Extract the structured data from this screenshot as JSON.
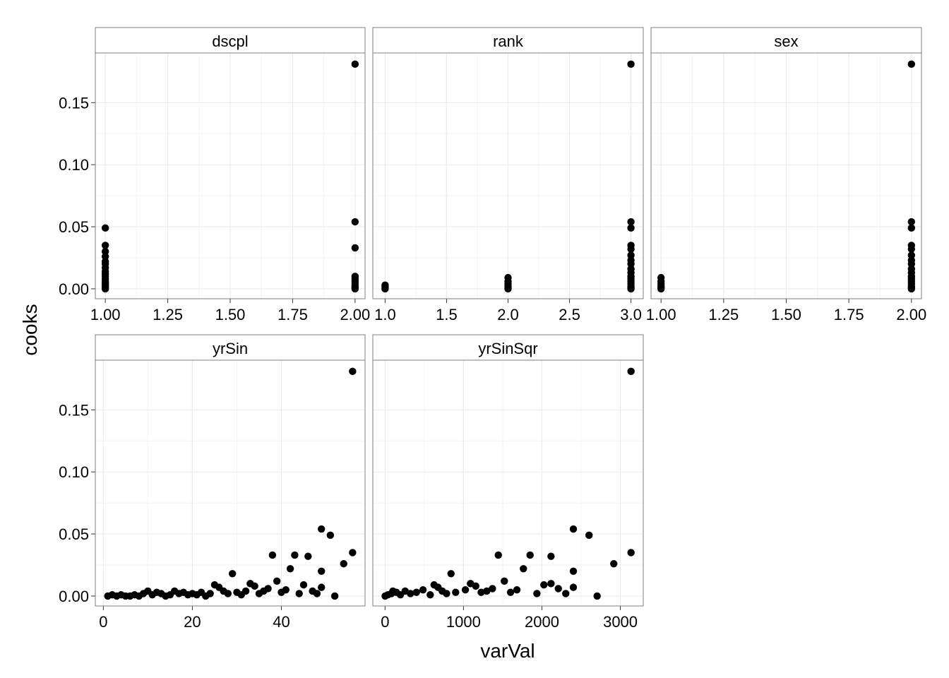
{
  "chart_data": {
    "type": "scatter",
    "layout": "facet_wrap",
    "xlabel": "varVal",
    "ylabel": "cooks",
    "colors": {
      "point": "#000000",
      "panel_border": "#7f7f7f",
      "strip_fill": "#ffffff",
      "grid_major": "#ebebeb",
      "grid_minor": "#f5f5f5"
    },
    "y_axis": {
      "ylim": [
        -0.008,
        0.19
      ],
      "ticks": [
        0.0,
        0.05,
        0.1,
        0.15
      ],
      "tick_labels": [
        "0.00",
        "0.05",
        "0.10",
        "0.15"
      ],
      "grid": true
    },
    "panels": [
      {
        "name": "dscpl",
        "xlim": [
          0.96,
          2.04
        ],
        "ticks": [
          1.0,
          1.25,
          1.5,
          1.75,
          2.0
        ],
        "tick_labels": [
          "1.00",
          "1.25",
          "1.50",
          "1.75",
          "2.00"
        ],
        "points": [
          {
            "x": 1,
            "y": 0.0
          },
          {
            "x": 1,
            "y": 0.001
          },
          {
            "x": 1,
            "y": 0.002
          },
          {
            "x": 1,
            "y": 0.003
          },
          {
            "x": 1,
            "y": 0.004
          },
          {
            "x": 1,
            "y": 0.005
          },
          {
            "x": 1,
            "y": 0.006
          },
          {
            "x": 1,
            "y": 0.008
          },
          {
            "x": 1,
            "y": 0.01
          },
          {
            "x": 1,
            "y": 0.012
          },
          {
            "x": 1,
            "y": 0.014
          },
          {
            "x": 1,
            "y": 0.017
          },
          {
            "x": 1,
            "y": 0.02
          },
          {
            "x": 1,
            "y": 0.022
          },
          {
            "x": 1,
            "y": 0.026
          },
          {
            "x": 1,
            "y": 0.03
          },
          {
            "x": 1,
            "y": 0.035
          },
          {
            "x": 1,
            "y": 0.049
          },
          {
            "x": 2,
            "y": 0.0
          },
          {
            "x": 2,
            "y": 0.001
          },
          {
            "x": 2,
            "y": 0.002
          },
          {
            "x": 2,
            "y": 0.004
          },
          {
            "x": 2,
            "y": 0.006
          },
          {
            "x": 2,
            "y": 0.008
          },
          {
            "x": 2,
            "y": 0.01
          },
          {
            "x": 2,
            "y": 0.033
          },
          {
            "x": 2,
            "y": 0.054
          },
          {
            "x": 2,
            "y": 0.181
          }
        ]
      },
      {
        "name": "rank",
        "xlim": [
          0.9,
          3.1
        ],
        "ticks": [
          1.0,
          1.5,
          2.0,
          2.5,
          3.0
        ],
        "tick_labels": [
          "1.0",
          "1.5",
          "2.0",
          "2.5",
          "3.0"
        ],
        "points": [
          {
            "x": 1,
            "y": 0.0
          },
          {
            "x": 1,
            "y": 0.001
          },
          {
            "x": 1,
            "y": 0.002
          },
          {
            "x": 1,
            "y": 0.003
          },
          {
            "x": 2,
            "y": 0.0
          },
          {
            "x": 2,
            "y": 0.001
          },
          {
            "x": 2,
            "y": 0.002
          },
          {
            "x": 2,
            "y": 0.004
          },
          {
            "x": 2,
            "y": 0.006
          },
          {
            "x": 2,
            "y": 0.009
          },
          {
            "x": 3,
            "y": 0.0
          },
          {
            "x": 3,
            "y": 0.001
          },
          {
            "x": 3,
            "y": 0.002
          },
          {
            "x": 3,
            "y": 0.004
          },
          {
            "x": 3,
            "y": 0.006
          },
          {
            "x": 3,
            "y": 0.008
          },
          {
            "x": 3,
            "y": 0.01
          },
          {
            "x": 3,
            "y": 0.013
          },
          {
            "x": 3,
            "y": 0.016
          },
          {
            "x": 3,
            "y": 0.02
          },
          {
            "x": 3,
            "y": 0.023
          },
          {
            "x": 3,
            "y": 0.027
          },
          {
            "x": 3,
            "y": 0.032
          },
          {
            "x": 3,
            "y": 0.035
          },
          {
            "x": 3,
            "y": 0.049
          },
          {
            "x": 3,
            "y": 0.054
          },
          {
            "x": 3,
            "y": 0.181
          }
        ]
      },
      {
        "name": "sex",
        "xlim": [
          0.96,
          2.04
        ],
        "ticks": [
          1.0,
          1.25,
          1.5,
          1.75,
          2.0
        ],
        "tick_labels": [
          "1.00",
          "1.25",
          "1.50",
          "1.75",
          "2.00"
        ],
        "points": [
          {
            "x": 1,
            "y": 0.0
          },
          {
            "x": 1,
            "y": 0.001
          },
          {
            "x": 1,
            "y": 0.002
          },
          {
            "x": 1,
            "y": 0.004
          },
          {
            "x": 1,
            "y": 0.006
          },
          {
            "x": 1,
            "y": 0.009
          },
          {
            "x": 2,
            "y": 0.0
          },
          {
            "x": 2,
            "y": 0.001
          },
          {
            "x": 2,
            "y": 0.002
          },
          {
            "x": 2,
            "y": 0.004
          },
          {
            "x": 2,
            "y": 0.006
          },
          {
            "x": 2,
            "y": 0.008
          },
          {
            "x": 2,
            "y": 0.01
          },
          {
            "x": 2,
            "y": 0.013
          },
          {
            "x": 2,
            "y": 0.016
          },
          {
            "x": 2,
            "y": 0.02
          },
          {
            "x": 2,
            "y": 0.023
          },
          {
            "x": 2,
            "y": 0.027
          },
          {
            "x": 2,
            "y": 0.032
          },
          {
            "x": 2,
            "y": 0.035
          },
          {
            "x": 2,
            "y": 0.049
          },
          {
            "x": 2,
            "y": 0.054
          },
          {
            "x": 2,
            "y": 0.181
          }
        ]
      },
      {
        "name": "yrSin",
        "xlim": [
          -1.8,
          58.8
        ],
        "ticks": [
          0,
          20,
          40
        ],
        "tick_labels": [
          "0",
          "20",
          "40"
        ],
        "points": [
          {
            "x": 1,
            "y": 0.0
          },
          {
            "x": 2,
            "y": 0.001
          },
          {
            "x": 3,
            "y": 0.0
          },
          {
            "x": 4,
            "y": 0.001
          },
          {
            "x": 5,
            "y": 0.0
          },
          {
            "x": 6,
            "y": 0.0
          },
          {
            "x": 7,
            "y": 0.001
          },
          {
            "x": 8,
            "y": 0.0
          },
          {
            "x": 9,
            "y": 0.002
          },
          {
            "x": 10,
            "y": 0.004
          },
          {
            "x": 11,
            "y": 0.001
          },
          {
            "x": 12,
            "y": 0.003
          },
          {
            "x": 13,
            "y": 0.002
          },
          {
            "x": 14,
            "y": 0.0
          },
          {
            "x": 15,
            "y": 0.001
          },
          {
            "x": 16,
            "y": 0.004
          },
          {
            "x": 17,
            "y": 0.002
          },
          {
            "x": 18,
            "y": 0.003
          },
          {
            "x": 19,
            "y": 0.001
          },
          {
            "x": 20,
            "y": 0.002
          },
          {
            "x": 21,
            "y": 0.001
          },
          {
            "x": 22,
            "y": 0.003
          },
          {
            "x": 23,
            "y": 0.0
          },
          {
            "x": 24,
            "y": 0.002
          },
          {
            "x": 25,
            "y": 0.009
          },
          {
            "x": 26,
            "y": 0.007
          },
          {
            "x": 27,
            "y": 0.004
          },
          {
            "x": 28,
            "y": 0.002
          },
          {
            "x": 29,
            "y": 0.018
          },
          {
            "x": 30,
            "y": 0.003
          },
          {
            "x": 31,
            "y": 0.001
          },
          {
            "x": 32,
            "y": 0.004
          },
          {
            "x": 33,
            "y": 0.01
          },
          {
            "x": 34,
            "y": 0.008
          },
          {
            "x": 35,
            "y": 0.002
          },
          {
            "x": 36,
            "y": 0.004
          },
          {
            "x": 37,
            "y": 0.006
          },
          {
            "x": 38,
            "y": 0.033
          },
          {
            "x": 39,
            "y": 0.012
          },
          {
            "x": 40,
            "y": 0.003
          },
          {
            "x": 41,
            "y": 0.005
          },
          {
            "x": 42,
            "y": 0.022
          },
          {
            "x": 43,
            "y": 0.033
          },
          {
            "x": 44,
            "y": 0.002
          },
          {
            "x": 45,
            "y": 0.009
          },
          {
            "x": 46,
            "y": 0.032
          },
          {
            "x": 47,
            "y": 0.004
          },
          {
            "x": 48,
            "y": 0.002
          },
          {
            "x": 49,
            "y": 0.054
          },
          {
            "x": 49,
            "y": 0.02
          },
          {
            "x": 49,
            "y": 0.007
          },
          {
            "x": 51,
            "y": 0.049
          },
          {
            "x": 52,
            "y": 0.0
          },
          {
            "x": 54,
            "y": 0.026
          },
          {
            "x": 56,
            "y": 0.035
          },
          {
            "x": 56,
            "y": 0.181
          }
        ]
      },
      {
        "name": "yrSinSqr",
        "xlim": [
          -156,
          3292
        ],
        "ticks": [
          0,
          1000,
          2000,
          3000
        ],
        "tick_labels": [
          "0",
          "1000",
          "2000",
          "3000"
        ],
        "points": [
          {
            "x": 1,
            "y": 0.0
          },
          {
            "x": 36,
            "y": 0.001
          },
          {
            "x": 81,
            "y": 0.002
          },
          {
            "x": 100,
            "y": 0.004
          },
          {
            "x": 144,
            "y": 0.003
          },
          {
            "x": 196,
            "y": 0.001
          },
          {
            "x": 256,
            "y": 0.004
          },
          {
            "x": 324,
            "y": 0.002
          },
          {
            "x": 400,
            "y": 0.003
          },
          {
            "x": 484,
            "y": 0.005
          },
          {
            "x": 576,
            "y": 0.001
          },
          {
            "x": 625,
            "y": 0.009
          },
          {
            "x": 676,
            "y": 0.007
          },
          {
            "x": 729,
            "y": 0.004
          },
          {
            "x": 784,
            "y": 0.002
          },
          {
            "x": 841,
            "y": 0.018
          },
          {
            "x": 900,
            "y": 0.003
          },
          {
            "x": 1024,
            "y": 0.005
          },
          {
            "x": 1089,
            "y": 0.01
          },
          {
            "x": 1156,
            "y": 0.008
          },
          {
            "x": 1225,
            "y": 0.003
          },
          {
            "x": 1296,
            "y": 0.004
          },
          {
            "x": 1369,
            "y": 0.006
          },
          {
            "x": 1444,
            "y": 0.033
          },
          {
            "x": 1521,
            "y": 0.012
          },
          {
            "x": 1600,
            "y": 0.003
          },
          {
            "x": 1681,
            "y": 0.005
          },
          {
            "x": 1764,
            "y": 0.022
          },
          {
            "x": 1849,
            "y": 0.033
          },
          {
            "x": 1936,
            "y": 0.002
          },
          {
            "x": 2025,
            "y": 0.009
          },
          {
            "x": 2116,
            "y": 0.032
          },
          {
            "x": 2116,
            "y": 0.01
          },
          {
            "x": 2209,
            "y": 0.006
          },
          {
            "x": 2304,
            "y": 0.002
          },
          {
            "x": 2401,
            "y": 0.054
          },
          {
            "x": 2401,
            "y": 0.02
          },
          {
            "x": 2401,
            "y": 0.007
          },
          {
            "x": 2601,
            "y": 0.049
          },
          {
            "x": 2704,
            "y": 0.0
          },
          {
            "x": 2916,
            "y": 0.026
          },
          {
            "x": 3136,
            "y": 0.035
          },
          {
            "x": 3136,
            "y": 0.181
          }
        ]
      }
    ]
  }
}
